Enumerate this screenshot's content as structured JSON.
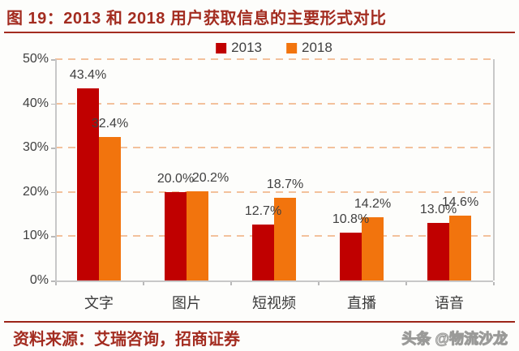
{
  "title": {
    "text": "图 19：2013 和 2018 用户获取信息的主要形式对比"
  },
  "legend": {
    "items": [
      {
        "label": "2013",
        "color": "#c00000"
      },
      {
        "label": "2018",
        "color": "#f2740d"
      }
    ]
  },
  "chart_data": {
    "type": "bar",
    "title": "2013 和 2018 用户获取信息的主要形式对比",
    "categories": [
      "文字",
      "图片",
      "短视频",
      "直播",
      "语音"
    ],
    "series": [
      {
        "name": "2013",
        "color": "#c00000",
        "values": [
          43.4,
          20.0,
          12.7,
          10.8,
          13.0
        ],
        "labels": [
          "43.4%",
          "20.0%",
          "12.7%",
          "10.8%",
          "13.0%"
        ]
      },
      {
        "name": "2018",
        "color": "#f2740d",
        "values": [
          32.4,
          20.2,
          18.7,
          14.2,
          14.6
        ],
        "labels": [
          "32.4%",
          "20.2%",
          "18.7%",
          "14.2%",
          "14.6%"
        ]
      }
    ],
    "y_ticks": [
      {
        "label": "0%",
        "value": 0
      },
      {
        "label": "10%",
        "value": 10
      },
      {
        "label": "20%",
        "value": 20
      },
      {
        "label": "30%",
        "value": 30
      },
      {
        "label": "40%",
        "value": 40
      },
      {
        "label": "50%",
        "value": 50
      }
    ],
    "ylim": [
      0,
      50
    ],
    "xlabel": "",
    "ylabel": "",
    "grid": "horizontal-dashed",
    "legend_position": "top-center",
    "gridline_color": "#f3c19c",
    "axis_color": "#c8c8c8",
    "label_color": "#404040"
  },
  "footer": {
    "source": "资料来源：艾瑞咨询，招商证券",
    "watermark": "头条 @物流沙龙"
  }
}
